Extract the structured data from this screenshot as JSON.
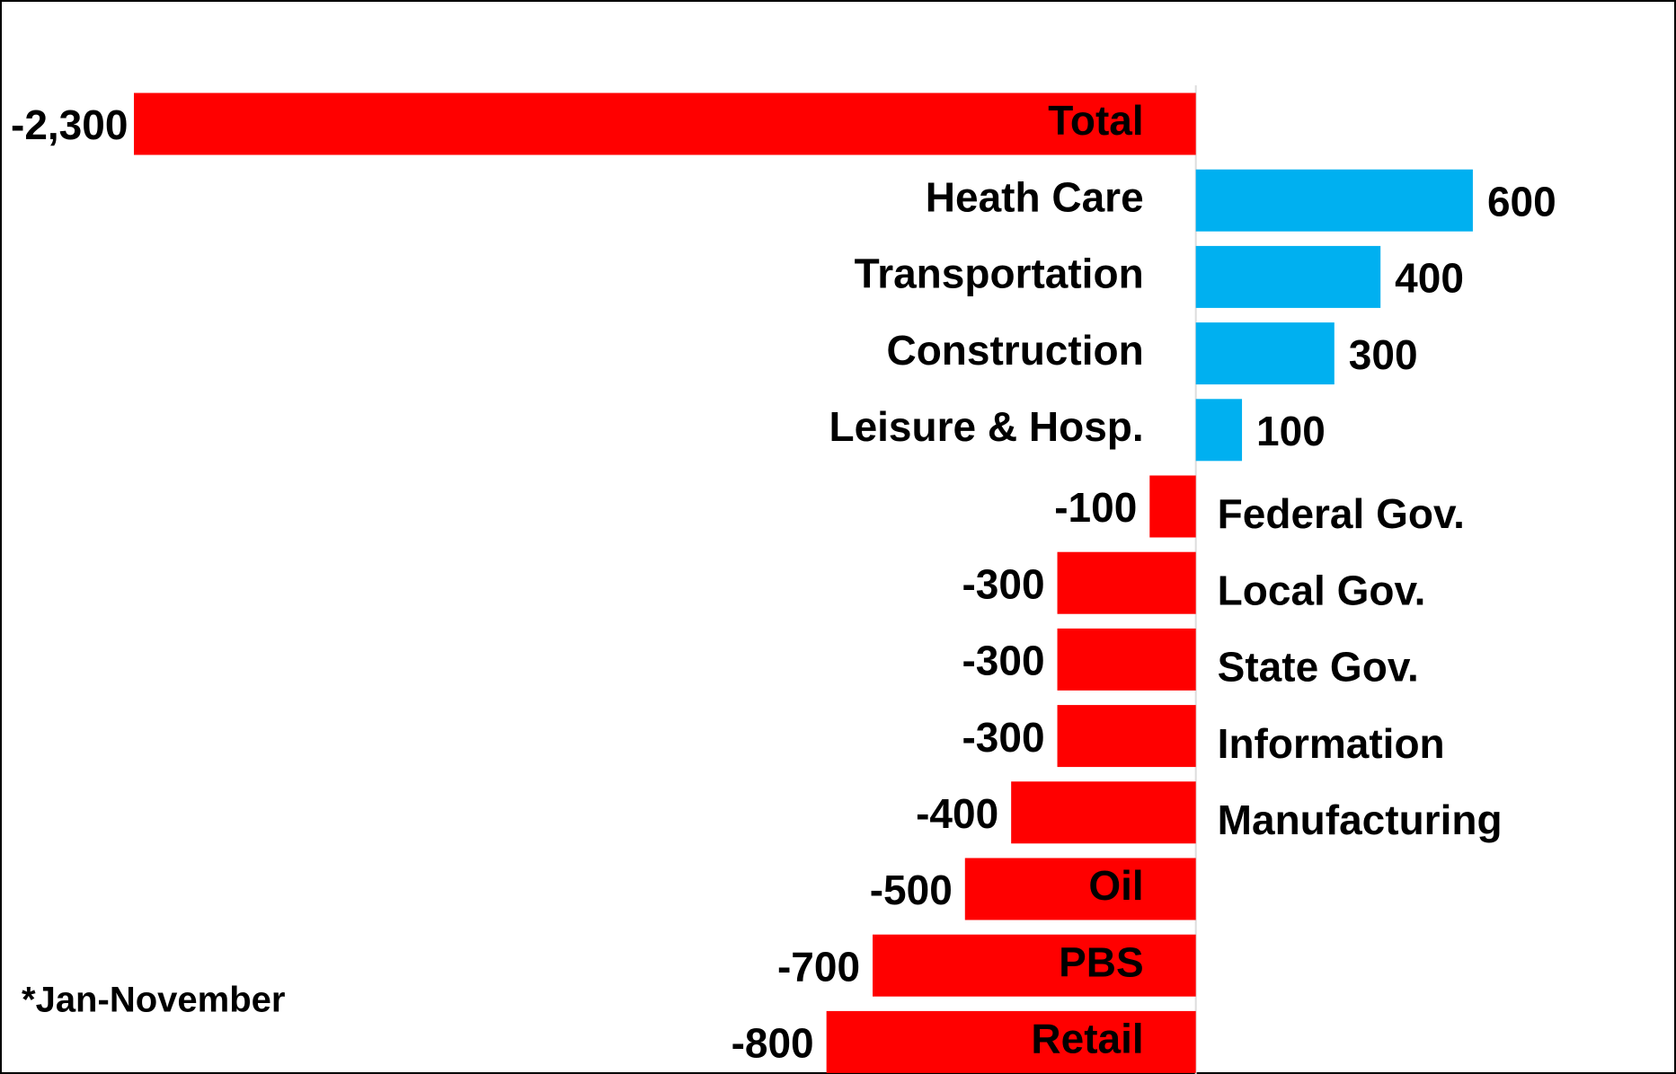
{
  "chart_data": {
    "type": "bar",
    "orientation": "horizontal",
    "categories": [
      "Total",
      "Heath Care",
      "Transportation",
      "Construction",
      "Leisure & Hosp.",
      "Federal Gov.",
      "Local Gov.",
      "State Gov.",
      "Information",
      "Manufacturing",
      "Oil",
      "PBS",
      "Retail"
    ],
    "values": [
      -2300,
      600,
      400,
      300,
      100,
      -100,
      -300,
      -300,
      -300,
      -400,
      -500,
      -700,
      -800
    ],
    "value_labels": [
      "-2,300",
      "600",
      "400",
      "300",
      "100",
      "-100",
      "-300",
      "-300",
      "-300",
      "-400",
      "-500",
      "-700",
      "-800"
    ],
    "colors": [
      "#ff0000",
      "#00b0f0",
      "#00b0f0",
      "#00b0f0",
      "#00b0f0",
      "#ff0000",
      "#ff0000",
      "#ff0000",
      "#ff0000",
      "#ff0000",
      "#ff0000",
      "#ff0000",
      "#ff0000"
    ],
    "xlim": [
      -2590,
      1040
    ],
    "annotation": "*Jan-November"
  }
}
